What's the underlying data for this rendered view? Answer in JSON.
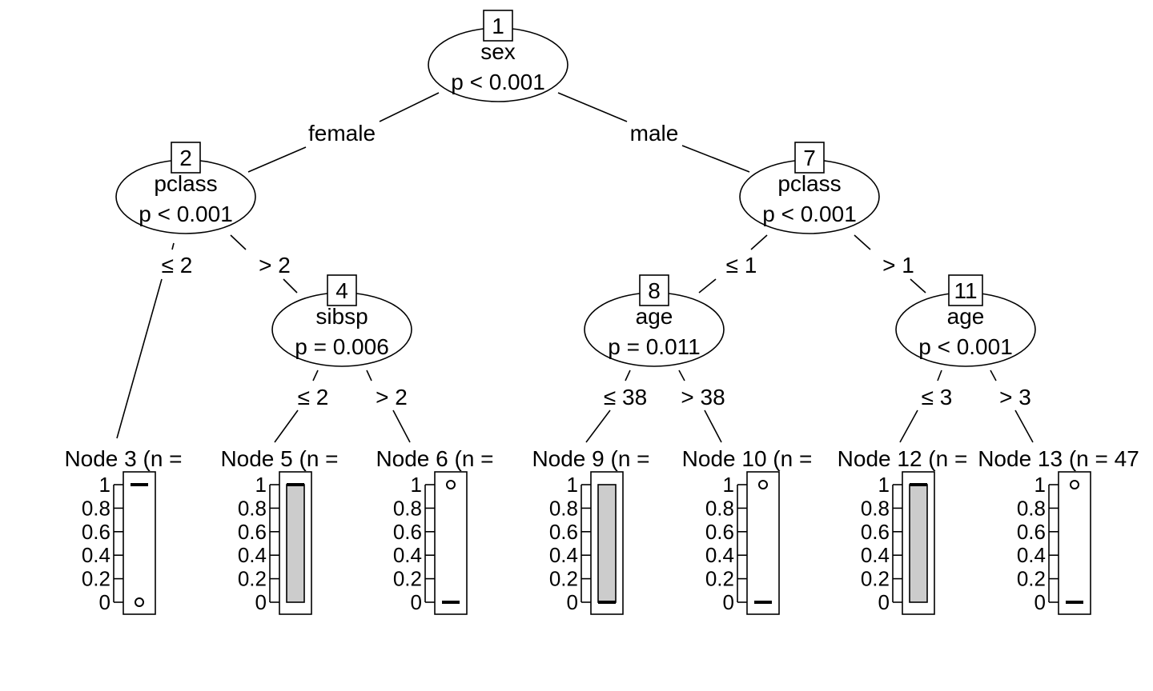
{
  "inner_nodes": [
    {
      "id": "1",
      "variable": "sex",
      "pvalue": "p < 0.001"
    },
    {
      "id": "2",
      "variable": "pclass",
      "pvalue": "p < 0.001"
    },
    {
      "id": "4",
      "variable": "sibsp",
      "pvalue": "p = 0.006"
    },
    {
      "id": "7",
      "variable": "pclass",
      "pvalue": "p < 0.001"
    },
    {
      "id": "8",
      "variable": "age",
      "pvalue": "p = 0.011"
    },
    {
      "id": "11",
      "variable": "age",
      "pvalue": "p < 0.001"
    }
  ],
  "edges": [
    {
      "from": "1",
      "to": "2",
      "label": "female"
    },
    {
      "from": "1",
      "to": "7",
      "label": "male"
    },
    {
      "from": "2",
      "to": "3",
      "label": "≤ 2"
    },
    {
      "from": "2",
      "to": "4",
      "label": "> 2"
    },
    {
      "from": "4",
      "to": "5",
      "label": "≤ 2"
    },
    {
      "from": "4",
      "to": "6",
      "label": "> 2"
    },
    {
      "from": "7",
      "to": "8",
      "label": "≤ 1"
    },
    {
      "from": "7",
      "to": "11",
      "label": "> 1"
    },
    {
      "from": "8",
      "to": "9",
      "label": "≤ 38"
    },
    {
      "from": "8",
      "to": "10",
      "label": "> 38"
    },
    {
      "from": "11",
      "to": "12",
      "label": "≤ 3"
    },
    {
      "from": "11",
      "to": "13",
      "label": "> 3"
    }
  ],
  "terminal_nodes": [
    {
      "id": "3",
      "title": "Node 3 (n = ",
      "box": {
        "min": 0,
        "q1": 1,
        "median": 1,
        "q3": 1,
        "max": 1
      },
      "outliers": [
        0
      ]
    },
    {
      "id": "5",
      "title": "Node 5 (n = ",
      "box": {
        "min": 0,
        "q1": 0,
        "median": 1,
        "q3": 1,
        "max": 1
      },
      "outliers": []
    },
    {
      "id": "6",
      "title": "Node 6 (n = ",
      "box": {
        "min": 0,
        "q1": 0,
        "median": 0,
        "q3": 0,
        "max": 0
      },
      "outliers": [
        1
      ]
    },
    {
      "id": "9",
      "title": "Node 9 (n = ",
      "box": {
        "min": 0,
        "q1": 0,
        "median": 0,
        "q3": 1,
        "max": 1
      },
      "outliers": []
    },
    {
      "id": "10",
      "title": "Node 10 (n = ",
      "box": {
        "min": 0,
        "q1": 0,
        "median": 0,
        "q3": 0,
        "max": 0
      },
      "outliers": [
        1
      ]
    },
    {
      "id": "12",
      "title": "Node 12 (n =",
      "box": {
        "min": 0,
        "q1": 0,
        "median": 1,
        "q3": 1,
        "max": 1
      },
      "outliers": []
    },
    {
      "id": "13",
      "title": "Node 13 (n = 47",
      "box": {
        "min": 0,
        "q1": 0,
        "median": 0,
        "q3": 0,
        "max": 0
      },
      "outliers": [
        1
      ]
    }
  ],
  "y_ticks": [
    "1",
    "0.8",
    "0.6",
    "0.4",
    "0.2",
    "0"
  ],
  "colors": {
    "box_fill": "#cccccc",
    "line": "#000000"
  }
}
